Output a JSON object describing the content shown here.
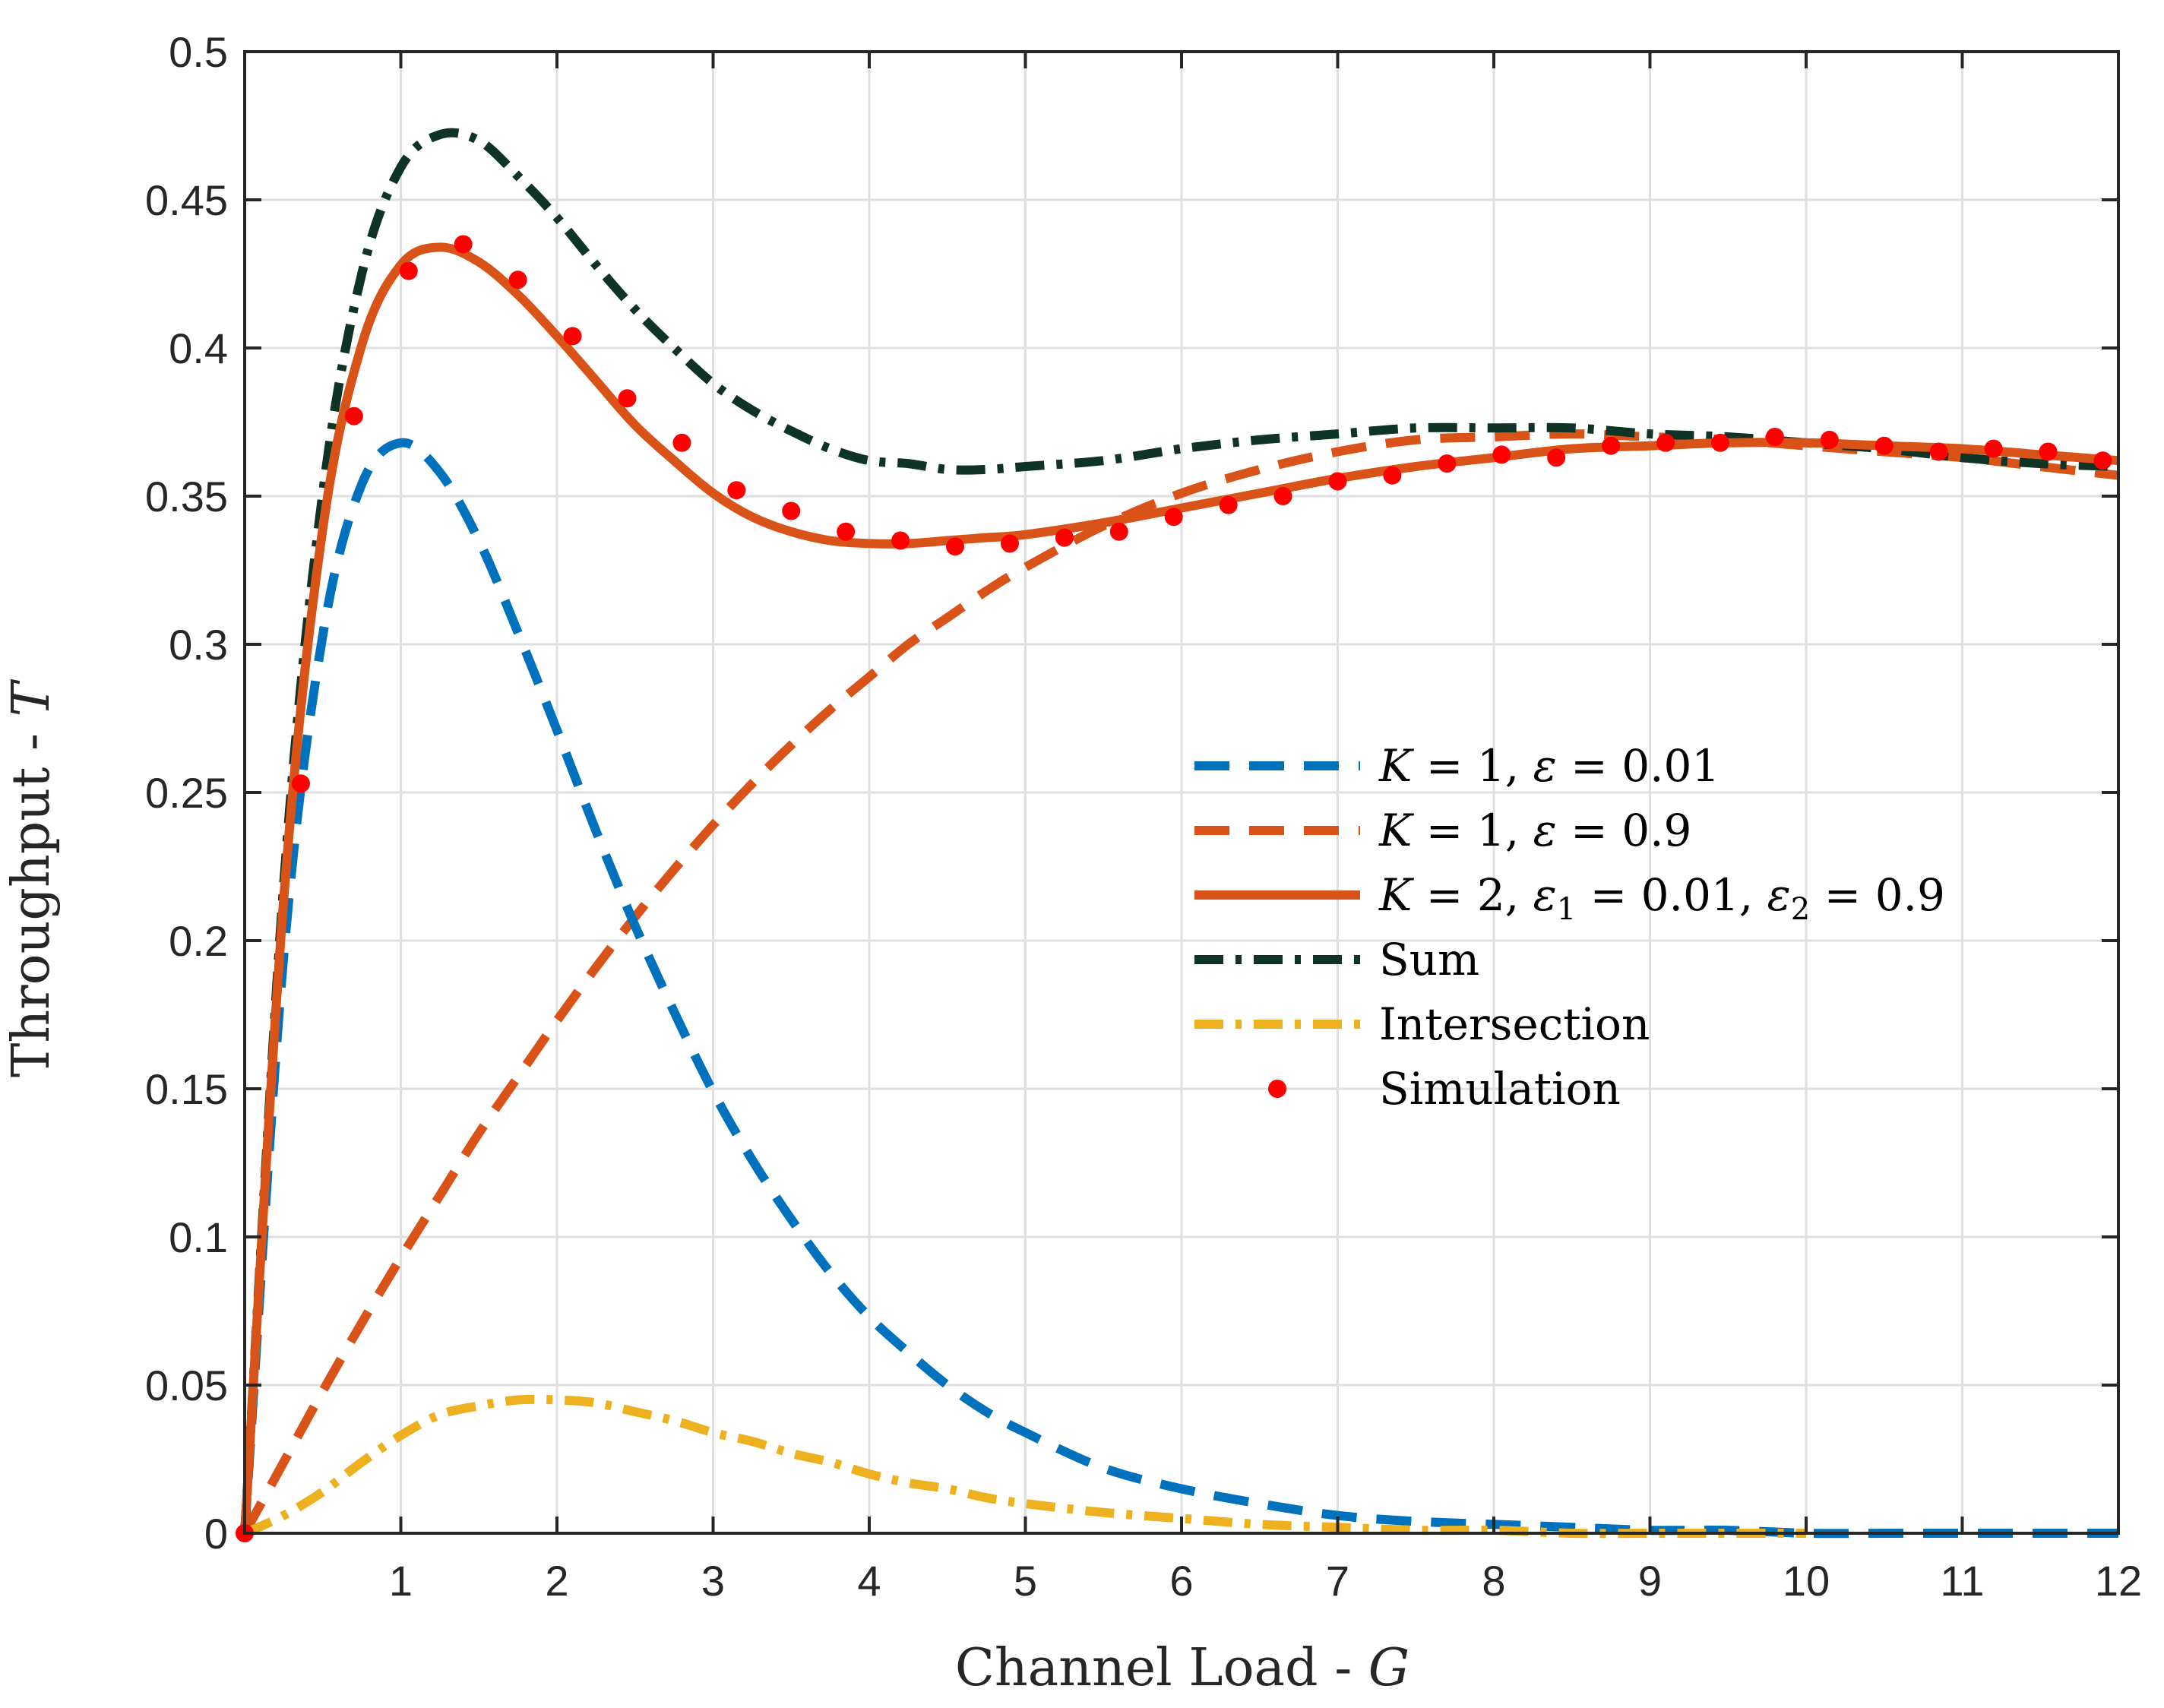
{
  "chart_data": {
    "type": "line",
    "title": "",
    "xlabel": "Channel Load - ",
    "xlabel_var": "G",
    "ylabel": "Throughput - ",
    "ylabel_var": "T",
    "xlim": [
      0,
      12
    ],
    "ylim": [
      0,
      0.5
    ],
    "grid": true,
    "legend_position": "center-right",
    "x_ticks": [
      1,
      2,
      3,
      4,
      5,
      6,
      7,
      8,
      9,
      10,
      11,
      12
    ],
    "x_tick_labels": [
      "1",
      "2",
      "3",
      "4",
      "5",
      "6",
      "7",
      "8",
      "9",
      "10",
      "11",
      "12"
    ],
    "y_ticks": [
      0,
      0.05,
      0.1,
      0.15,
      0.2,
      0.25,
      0.3,
      0.35,
      0.4,
      0.45,
      0.5
    ],
    "y_tick_labels": [
      "0",
      "0.05",
      "0.1",
      "0.15",
      "0.2",
      "0.25",
      "0.3",
      "0.35",
      "0.4",
      "0.45",
      "0.5"
    ],
    "x": [
      0,
      0.25,
      0.5,
      0.75,
      1,
      1.25,
      1.5,
      1.75,
      2,
      2.25,
      2.5,
      2.75,
      3,
      3.25,
      3.5,
      3.75,
      4,
      4.25,
      4.5,
      4.75,
      5,
      5.5,
      6,
      6.5,
      7,
      7.5,
      8,
      8.5,
      9,
      9.5,
      10,
      10.5,
      11,
      11.5,
      12
    ],
    "series": [
      {
        "name": "K = 1, ε = 0.01",
        "label_parts": [
          "K",
          " = 1, ",
          "ε",
          " = 0.01"
        ],
        "color": "#0072bd",
        "style": "dashed",
        "values": [
          0,
          0.195,
          0.303,
          0.354,
          0.368,
          0.358,
          0.335,
          0.304,
          0.271,
          0.237,
          0.205,
          0.176,
          0.149,
          0.126,
          0.106,
          0.088,
          0.073,
          0.061,
          0.05,
          0.041,
          0.034,
          0.022,
          0.015,
          0.01,
          0.006,
          0.004,
          0.003,
          0.002,
          0.001,
          0.001,
          0.0,
          0.0,
          0.0,
          0.0,
          0.0
        ]
      },
      {
        "name": "K = 1, ε = 0.9",
        "label_parts": [
          "K",
          " = 1, ",
          "ε",
          " = 0.9"
        ],
        "color": "#d95319",
        "style": "dashed",
        "values": [
          0,
          0.024,
          0.048,
          0.071,
          0.093,
          0.114,
          0.135,
          0.154,
          0.173,
          0.191,
          0.208,
          0.224,
          0.239,
          0.253,
          0.266,
          0.278,
          0.289,
          0.3,
          0.309,
          0.318,
          0.326,
          0.34,
          0.351,
          0.359,
          0.365,
          0.369,
          0.37,
          0.371,
          0.37,
          0.369,
          0.367,
          0.365,
          0.363,
          0.36,
          0.357
        ]
      },
      {
        "name": "K = 2, ε1 = 0.01, ε2 = 0.9",
        "label_parts": [
          "K",
          " = 2, ",
          "ε",
          "1",
          " = 0.01, ",
          "ε",
          "2",
          " = 0.9"
        ],
        "color": "#d95319",
        "style": "solid",
        "values": [
          0,
          0.214,
          0.339,
          0.401,
          0.428,
          0.434,
          0.429,
          0.418,
          0.404,
          0.389,
          0.374,
          0.362,
          0.351,
          0.343,
          0.338,
          0.335,
          0.334,
          0.334,
          0.335,
          0.336,
          0.337,
          0.341,
          0.346,
          0.351,
          0.356,
          0.36,
          0.363,
          0.366,
          0.367,
          0.368,
          0.368,
          0.367,
          0.366,
          0.364,
          0.362
        ]
      },
      {
        "name": "Sum",
        "label_parts": [
          "Sum"
        ],
        "color": "#0f3324",
        "style": "dashdot",
        "values": [
          0,
          0.219,
          0.351,
          0.425,
          0.461,
          0.472,
          0.47,
          0.458,
          0.444,
          0.428,
          0.413,
          0.4,
          0.388,
          0.379,
          0.372,
          0.366,
          0.362,
          0.361,
          0.359,
          0.359,
          0.36,
          0.362,
          0.366,
          0.369,
          0.371,
          0.373,
          0.373,
          0.373,
          0.371,
          0.37,
          0.368,
          0.366,
          0.363,
          0.361,
          0.36
        ]
      },
      {
        "name": "Intersection",
        "label_parts": [
          "Intersection"
        ],
        "color": "#edb120",
        "style": "dashdot",
        "values": [
          0,
          0.006,
          0.014,
          0.024,
          0.033,
          0.04,
          0.043,
          0.045,
          0.045,
          0.044,
          0.041,
          0.038,
          0.034,
          0.031,
          0.027,
          0.024,
          0.02,
          0.017,
          0.015,
          0.012,
          0.01,
          0.007,
          0.005,
          0.003,
          0.002,
          0.001,
          0.001,
          0.0,
          0.0,
          0.0,
          0.0,
          null,
          null,
          null,
          null
        ]
      }
    ],
    "simulation": {
      "name": "Simulation",
      "color": "#ff0000",
      "x": [
        0,
        0.36,
        0.7,
        1.05,
        1.4,
        1.75,
        2.1,
        2.45,
        2.8,
        3.15,
        3.5,
        3.85,
        4.2,
        4.55,
        4.9,
        5.25,
        5.6,
        5.95,
        6.3,
        6.65,
        7.0,
        7.35,
        7.7,
        8.05,
        8.4,
        8.75,
        9.1,
        9.45,
        9.8,
        10.15,
        10.5,
        10.85,
        11.2,
        11.55,
        11.9
      ],
      "y": [
        0,
        0.253,
        0.377,
        0.426,
        0.435,
        0.423,
        0.404,
        0.383,
        0.368,
        0.352,
        0.345,
        0.338,
        0.335,
        0.333,
        0.334,
        0.336,
        0.338,
        0.343,
        0.347,
        0.35,
        0.355,
        0.357,
        0.361,
        0.364,
        0.363,
        0.367,
        0.368,
        0.368,
        0.37,
        0.369,
        0.367,
        0.365,
        0.366,
        0.365,
        0.362
      ]
    }
  }
}
